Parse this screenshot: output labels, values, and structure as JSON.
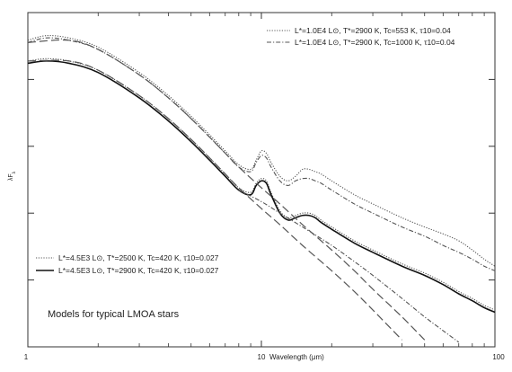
{
  "chart_data": {
    "type": "line",
    "xlabel": "Wavelength (μm)",
    "ylabel": "λF",
    "ylabel_sub": "λ",
    "x_scale": "log",
    "y_scale": "log",
    "xlim": [
      1,
      100
    ],
    "y_ticks_count": 4,
    "x_ticks": [
      {
        "value": 1,
        "label": "1"
      },
      {
        "value": 10,
        "label": "10"
      },
      {
        "value": 100,
        "label": "100"
      }
    ],
    "annotation": "Models for typical LMOA stars",
    "series": [
      {
        "name": "L*=1.0E4 L⊙, T*=2900 K, Tc=553 K, τ10=0.04",
        "style": "dotted",
        "color": "#555555",
        "legend_group": "top",
        "x": [
          1,
          1.2,
          1.5,
          2,
          3,
          4,
          5,
          6,
          7,
          8,
          9,
          9.5,
          10,
          10.5,
          11,
          12,
          13,
          14,
          15,
          16,
          17,
          18,
          20,
          25,
          30,
          40,
          50,
          60,
          70,
          80,
          90,
          100
        ],
        "y": [
          0.86,
          0.88,
          0.87,
          0.83,
          0.72,
          0.62,
          0.53,
          0.45,
          0.38,
          0.32,
          0.3,
          0.34,
          0.38,
          0.37,
          0.33,
          0.27,
          0.25,
          0.27,
          0.3,
          0.3,
          0.29,
          0.28,
          0.25,
          0.19,
          0.15,
          0.09,
          0.05,
          0.02,
          -0.01,
          -0.05,
          -0.09,
          -0.12
        ]
      },
      {
        "name": "L*=1.0E4 L⊙, T*=2900 K, Tc=1000 K, τ10=0.04",
        "style": "dash-dot",
        "color": "#555555",
        "legend_group": "top",
        "x": [
          1,
          1.2,
          1.5,
          2,
          3,
          4,
          5,
          6,
          7,
          8,
          9,
          9.5,
          10,
          10.5,
          11,
          12,
          13,
          14,
          15,
          16,
          17,
          18,
          20,
          25,
          30,
          40,
          50,
          60,
          70,
          80,
          90,
          100
        ],
        "y": [
          0.85,
          0.87,
          0.86,
          0.82,
          0.71,
          0.61,
          0.52,
          0.44,
          0.37,
          0.31,
          0.29,
          0.33,
          0.36,
          0.35,
          0.31,
          0.25,
          0.23,
          0.25,
          0.26,
          0.26,
          0.25,
          0.24,
          0.21,
          0.15,
          0.11,
          0.05,
          0.01,
          -0.03,
          -0.06,
          -0.09,
          -0.12,
          -0.14
        ]
      },
      {
        "name": "L*=4.5E3 L⊙, T*=2500 K, Tc=420 K, τ10=0.027",
        "style": "dotted",
        "color": "#555555",
        "legend_group": "bottom",
        "x": [
          1,
          1.2,
          1.5,
          2,
          3,
          4,
          5,
          6,
          7,
          8,
          9,
          9.5,
          10,
          10.5,
          11,
          12,
          13,
          14,
          15,
          16,
          17,
          18,
          20,
          25,
          30,
          40,
          50,
          60,
          70,
          80,
          90,
          100
        ],
        "y": [
          0.77,
          0.78,
          0.77,
          0.73,
          0.62,
          0.52,
          0.43,
          0.35,
          0.28,
          0.22,
          0.2,
          0.24,
          0.26,
          0.25,
          0.2,
          0.12,
          0.09,
          0.1,
          0.11,
          0.11,
          0.1,
          0.08,
          0.05,
          -0.01,
          -0.05,
          -0.11,
          -0.15,
          -0.19,
          -0.23,
          -0.26,
          -0.29,
          -0.31
        ]
      },
      {
        "name": "L*=4.5E3 L⊙, T*=2900 K, Tc=420 K, τ10=0.027",
        "style": "solid",
        "color": "#111111",
        "legend_group": "bottom",
        "x": [
          1,
          1.2,
          1.5,
          2,
          3,
          4,
          5,
          6,
          7,
          8,
          9,
          9.5,
          10,
          10.5,
          11,
          12,
          13,
          14,
          15,
          16,
          17,
          18,
          20,
          25,
          30,
          40,
          50,
          60,
          70,
          80,
          90,
          100
        ],
        "y": [
          0.76,
          0.77,
          0.76,
          0.72,
          0.61,
          0.51,
          0.42,
          0.34,
          0.27,
          0.21,
          0.19,
          0.23,
          0.25,
          0.24,
          0.19,
          0.11,
          0.08,
          0.09,
          0.1,
          0.1,
          0.09,
          0.07,
          0.04,
          -0.02,
          -0.06,
          -0.12,
          -0.16,
          -0.2,
          -0.24,
          -0.27,
          -0.3,
          -0.32
        ]
      },
      {
        "style": "long-dash",
        "color": "#555555",
        "x": [
          1,
          1.5,
          2,
          3,
          4,
          5,
          6,
          7,
          8,
          10,
          12,
          15,
          20,
          25,
          30,
          40
        ],
        "y": [
          0.77,
          0.77,
          0.73,
          0.62,
          0.52,
          0.43,
          0.35,
          0.28,
          0.22,
          0.13,
          0.06,
          -0.03,
          -0.14,
          -0.23,
          -0.31,
          -0.44
        ]
      },
      {
        "style": "long-dash",
        "color": "#555555",
        "x": [
          1,
          1.5,
          2,
          3,
          4,
          5,
          6,
          7,
          8,
          10,
          12,
          15,
          20,
          25,
          30,
          40,
          50
        ],
        "y": [
          0.85,
          0.86,
          0.82,
          0.71,
          0.61,
          0.52,
          0.44,
          0.37,
          0.31,
          0.22,
          0.15,
          0.06,
          -0.05,
          -0.14,
          -0.22,
          -0.34,
          -0.44
        ]
      },
      {
        "style": "dash-dot",
        "color": "#555555",
        "x": [
          8,
          10,
          12,
          15,
          20,
          25,
          30,
          40,
          50,
          60,
          70
        ],
        "y": [
          0.21,
          0.16,
          0.11,
          0.05,
          -0.03,
          -0.1,
          -0.16,
          -0.26,
          -0.34,
          -0.4,
          -0.45
        ]
      }
    ],
    "legends": [
      {
        "group": "top",
        "position": "top-right"
      },
      {
        "group": "bottom",
        "position": "bottom-left"
      }
    ]
  }
}
